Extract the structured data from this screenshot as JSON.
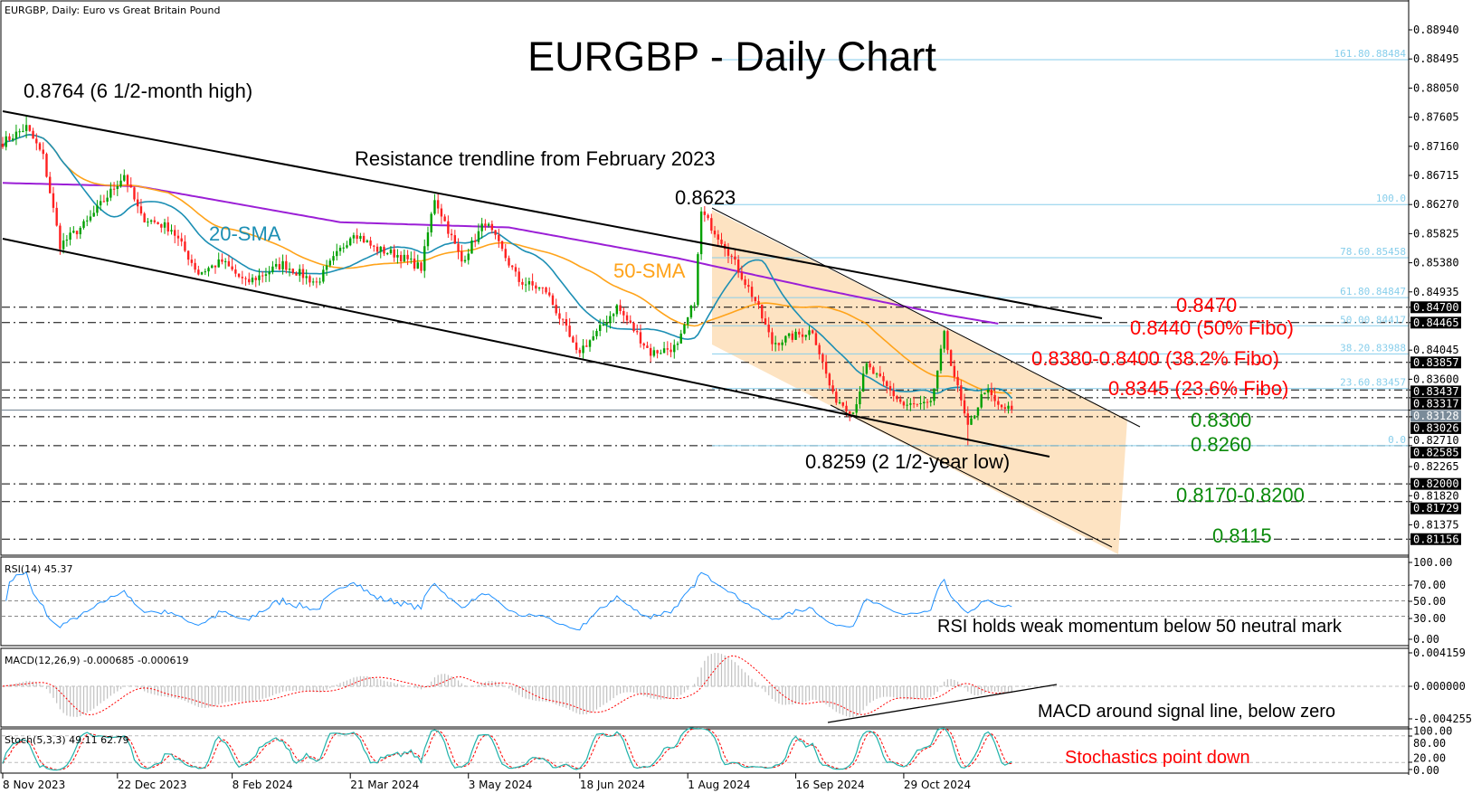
{
  "header": {
    "symbol_info": "EURGBP, Daily:  Euro vs Great Britain Pound",
    "title": "EURGBP - Daily Chart"
  },
  "annotations": {
    "high": "0.8764 (6 1/2-month high)",
    "resistance": "Resistance trendline from February 2023",
    "peak": "0.8623",
    "sma20": "20-SMA",
    "sma50": "50-SMA",
    "r1": "0.8470",
    "r2": "0.8440 (50% Fibo)",
    "r3": "0.8380-0.8400 (38.2% Fibo)",
    "r4": "0.8345 (23.6% Fibo)",
    "s1": "0.8300",
    "s2": "0.8260",
    "s3": "0.8170-0.8200",
    "s4": "0.8115",
    "low": "0.8259 (2 1/2-year low)",
    "rsi_note": "RSI holds weak momentum below 50 neutral mark",
    "macd_note": "MACD around signal line, below zero",
    "stoch_note": "Stochastics point down"
  },
  "colors": {
    "bull": "#00a000",
    "bear": "#ff2020",
    "sma20": "#1c8fb4",
    "sma50": "#ffa31a",
    "sma200": "#9b1fd6",
    "fibo": "#87ceeb",
    "channel_fill": "#fde3c2",
    "resistance_text": "#ff0000",
    "support_text": "#0a8a0a",
    "rsi": "#1e90ff",
    "stoch_main": "#20b2aa",
    "signal": "#ff0000",
    "macd_hist": "#c0c0c0"
  },
  "chart_data": {
    "type": "candlestick",
    "title": "EURGBP - Daily Chart",
    "price_axis": {
      "ylim": [
        0.81,
        0.892
      ],
      "ticks": [
        "0.88940",
        "0.88495",
        "0.88050",
        "0.87605",
        "0.87160",
        "0.86715",
        "0.86270",
        "0.85825",
        "0.85380",
        "0.84935",
        "0.84045",
        "0.83600",
        "0.82710",
        "0.82265",
        "0.81820",
        "0.81375"
      ]
    },
    "x_tick_labels": [
      {
        "bar": 0,
        "label": "8 Nov 2023"
      },
      {
        "bar": 34,
        "label": "22 Dec 2023"
      },
      {
        "bar": 68,
        "label": "8 Feb 2024"
      },
      {
        "bar": 103,
        "label": "21 Mar 2024"
      },
      {
        "bar": 138,
        "label": "3 May 2024"
      },
      {
        "bar": 171,
        "label": "18 Jun 2024"
      },
      {
        "bar": 203,
        "label": "1 Aug 2024"
      },
      {
        "bar": 235,
        "label": "16 Sep 2024"
      },
      {
        "bar": 267,
        "label": "29 Oct 2024"
      }
    ],
    "close_path": [
      [
        0,
        0.8722
      ],
      [
        7,
        0.8745
      ],
      [
        12,
        0.87
      ],
      [
        17,
        0.8565
      ],
      [
        25,
        0.86
      ],
      [
        36,
        0.8673
      ],
      [
        41,
        0.8608
      ],
      [
        50,
        0.859
      ],
      [
        58,
        0.8522
      ],
      [
        65,
        0.854
      ],
      [
        72,
        0.8507
      ],
      [
        83,
        0.8536
      ],
      [
        93,
        0.8507
      ],
      [
        104,
        0.8586
      ],
      [
        110,
        0.856
      ],
      [
        117,
        0.855
      ],
      [
        124,
        0.853
      ],
      [
        128,
        0.8637
      ],
      [
        136,
        0.854
      ],
      [
        143,
        0.8601
      ],
      [
        153,
        0.851
      ],
      [
        161,
        0.8495
      ],
      [
        167,
        0.8435
      ],
      [
        170,
        0.8399
      ],
      [
        176,
        0.843
      ],
      [
        182,
        0.8471
      ],
      [
        192,
        0.84
      ],
      [
        200,
        0.841
      ],
      [
        205,
        0.848
      ],
      [
        207,
        0.8615
      ],
      [
        214,
        0.8565
      ],
      [
        223,
        0.848
      ],
      [
        228,
        0.8415
      ],
      [
        240,
        0.8435
      ],
      [
        246,
        0.8334
      ],
      [
        252,
        0.831
      ],
      [
        256,
        0.838
      ],
      [
        267,
        0.832
      ],
      [
        275,
        0.832
      ],
      [
        279,
        0.8427
      ],
      [
        286,
        0.8284
      ],
      [
        291,
        0.8345
      ],
      [
        295,
        0.8318
      ],
      [
        299,
        0.8313
      ]
    ],
    "extremes": [
      {
        "bar": 7,
        "high": 0.8764
      },
      {
        "bar": 207,
        "high": 0.8623
      },
      {
        "bar": 286,
        "low": 0.8259
      }
    ],
    "sma200_path": [
      [
        0,
        0.866
      ],
      [
        40,
        0.8655
      ],
      [
        100,
        0.86
      ],
      [
        150,
        0.8592
      ],
      [
        200,
        0.8545
      ],
      [
        240,
        0.85
      ],
      [
        280,
        0.8458
      ],
      [
        295,
        0.8445
      ]
    ],
    "horizontal_levels": [
      {
        "price": 0.847,
        "label": "0.84700"
      },
      {
        "price": 0.84465,
        "label": "0.84465"
      },
      {
        "price": 0.83857,
        "label": "0.83857"
      },
      {
        "price": 0.83437,
        "label": "0.83437"
      },
      {
        "price": 0.83317,
        "label": "0.83317"
      },
      {
        "price": 0.83026,
        "label": "0.83026"
      },
      {
        "price": 0.82585,
        "label": "0.82585"
      },
      {
        "price": 0.82,
        "label": "0.82000"
      },
      {
        "price": 0.81729,
        "label": "0.81729"
      },
      {
        "price": 0.81156,
        "label": "0.81156"
      }
    ],
    "current_price": {
      "price": 0.83128,
      "label": "0.83128"
    },
    "fibonacci": [
      {
        "price": 0.88484,
        "label": "161.80.88484"
      },
      {
        "price": 0.8627,
        "label": "100.0"
      },
      {
        "price": 0.85458,
        "label": "78.60.85458"
      },
      {
        "price": 0.84847,
        "label": "61.80.84847"
      },
      {
        "price": 0.84417,
        "label": "50.00.84417"
      },
      {
        "price": 0.83988,
        "label": "38.20.83988"
      },
      {
        "price": 0.83457,
        "label": "23.60.83457"
      },
      {
        "price": 0.82585,
        "label": "0.0"
      }
    ],
    "indicators": {
      "rsi": {
        "label": "RSI(14) 45.37",
        "levels": [
          70,
          50,
          30
        ],
        "ticks": [
          "100.00",
          "70.00",
          "50.00",
          "30.00",
          "0.00"
        ]
      },
      "macd": {
        "label": "MACD(12,26,9) -0.000685 -0.000619",
        "ticks": [
          "0.004159",
          "0.000000",
          "-0.004255"
        ]
      },
      "stoch": {
        "label": "Stoch(5,3,3) 49.11 62.79",
        "levels": [
          80,
          20
        ],
        "ticks": [
          "100.00",
          "80.00",
          "20.00",
          "0.00"
        ]
      }
    }
  }
}
